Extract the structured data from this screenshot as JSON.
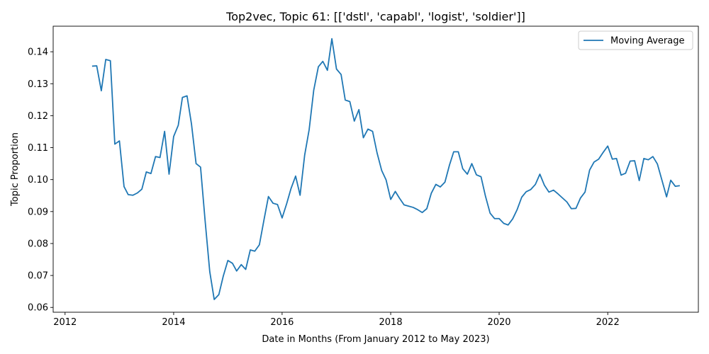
{
  "chart_data": {
    "type": "line",
    "title": "Top2vec, Topic 61: [['dstl', 'capabl', 'logist', 'soldier']]",
    "xlabel": "Date in Months (From January 2012 to May 2023)",
    "ylabel": "Topic Proportion",
    "xlim": [
      "2011-10-13",
      "2023-09-03"
    ],
    "ylim": [
      0.0585,
      0.148
    ],
    "x_tick_labels": [
      "2012",
      "2014",
      "2016",
      "2018",
      "2020",
      "2022"
    ],
    "y_tick_labels": [
      "0.06",
      "0.07",
      "0.08",
      "0.09",
      "0.10",
      "0.11",
      "0.12",
      "0.13",
      "0.14"
    ],
    "grid": false,
    "legend_position": "top-right",
    "series": [
      {
        "name": "Moving Average",
        "color": "#1f77b4",
        "x": [
          "2012-07",
          "2012-08",
          "2012-09",
          "2012-10",
          "2012-11",
          "2012-12",
          "2013-01",
          "2013-02",
          "2013-03",
          "2013-04",
          "2013-05",
          "2013-06",
          "2013-07",
          "2013-08",
          "2013-09",
          "2013-10",
          "2013-11",
          "2013-12",
          "2014-01",
          "2014-02",
          "2014-03",
          "2014-04",
          "2014-05",
          "2014-06",
          "2014-07",
          "2014-08",
          "2014-09",
          "2014-10",
          "2014-11",
          "2014-12",
          "2015-01",
          "2015-02",
          "2015-03",
          "2015-04",
          "2015-05",
          "2015-06",
          "2015-07",
          "2015-08",
          "2015-09",
          "2015-10",
          "2015-11",
          "2015-12",
          "2016-01",
          "2016-02",
          "2016-03",
          "2016-04",
          "2016-05",
          "2016-06",
          "2016-07",
          "2016-08",
          "2016-09",
          "2016-10",
          "2016-11",
          "2016-12",
          "2017-01",
          "2017-02",
          "2017-03",
          "2017-04",
          "2017-05",
          "2017-06",
          "2017-07",
          "2017-08",
          "2017-09",
          "2017-10",
          "2017-11",
          "2017-12",
          "2018-01",
          "2018-02",
          "2018-03",
          "2018-04",
          "2018-05",
          "2018-06",
          "2018-07",
          "2018-08",
          "2018-09",
          "2018-10",
          "2018-11",
          "2018-12",
          "2019-01",
          "2019-02",
          "2019-03",
          "2019-04",
          "2019-05",
          "2019-06",
          "2019-07",
          "2019-08",
          "2019-09",
          "2019-10",
          "2019-11",
          "2019-12",
          "2020-01",
          "2020-02",
          "2020-03",
          "2020-04",
          "2020-05",
          "2020-06",
          "2020-07",
          "2020-08",
          "2020-09",
          "2020-10",
          "2020-11",
          "2020-12",
          "2021-01",
          "2021-02",
          "2021-03",
          "2021-04",
          "2021-05",
          "2021-06",
          "2021-07",
          "2021-08",
          "2021-09",
          "2021-10",
          "2021-11",
          "2021-12",
          "2022-01",
          "2022-02",
          "2022-03",
          "2022-04",
          "2022-05",
          "2022-06",
          "2022-07",
          "2022-08",
          "2022-09",
          "2022-10",
          "2022-11",
          "2022-12",
          "2023-01",
          "2023-02",
          "2023-03",
          "2023-04",
          "2023-05"
        ],
        "values": [
          0.1355,
          0.1356,
          0.1278,
          0.1376,
          0.1372,
          0.1111,
          0.1121,
          0.0978,
          0.0953,
          0.0951,
          0.0958,
          0.097,
          0.1024,
          0.1019,
          0.1072,
          0.1069,
          0.1151,
          0.1017,
          0.1135,
          0.117,
          0.1257,
          0.1262,
          0.1174,
          0.105,
          0.1039,
          0.087,
          0.0712,
          0.0625,
          0.064,
          0.0698,
          0.0747,
          0.0738,
          0.0714,
          0.0734,
          0.0719,
          0.078,
          0.0776,
          0.0796,
          0.0874,
          0.0947,
          0.0926,
          0.0922,
          0.088,
          0.0925,
          0.0972,
          0.1011,
          0.0951,
          0.1077,
          0.1156,
          0.128,
          0.1353,
          0.137,
          0.1342,
          0.1441,
          0.1346,
          0.1329,
          0.1249,
          0.1244,
          0.1183,
          0.1219,
          0.1131,
          0.1158,
          0.1151,
          0.1084,
          0.1029,
          0.0999,
          0.0938,
          0.0963,
          0.0942,
          0.0921,
          0.0917,
          0.0913,
          0.0906,
          0.0897,
          0.0909,
          0.0957,
          0.0985,
          0.0977,
          0.0992,
          0.1046,
          0.1087,
          0.1087,
          0.1034,
          0.1017,
          0.105,
          0.1015,
          0.1009,
          0.0948,
          0.0895,
          0.0878,
          0.0878,
          0.0863,
          0.0858,
          0.0877,
          0.0906,
          0.0945,
          0.0962,
          0.0969,
          0.0985,
          0.1017,
          0.0982,
          0.0961,
          0.0967,
          0.0955,
          0.0943,
          0.093,
          0.0909,
          0.091,
          0.0942,
          0.0961,
          0.103,
          0.1055,
          0.1064,
          0.1085,
          0.1105,
          0.1064,
          0.1066,
          0.1014,
          0.102,
          0.1058,
          0.1059,
          0.0997,
          0.1066,
          0.1062,
          0.1072,
          0.1049,
          0.0998,
          0.0946,
          0.0998,
          0.0979,
          0.0981
        ]
      }
    ]
  }
}
